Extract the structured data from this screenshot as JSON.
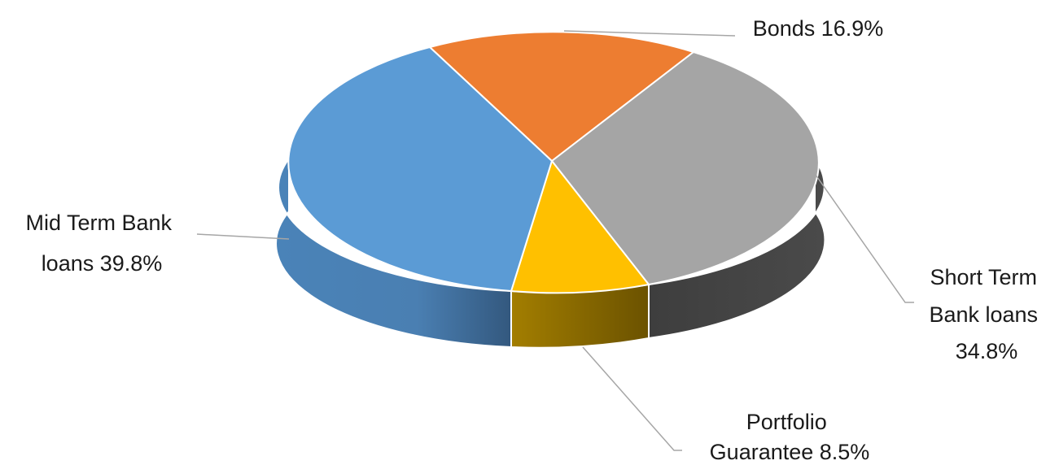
{
  "chart_data": {
    "type": "pie",
    "style": "3d",
    "slices": [
      {
        "name": "Bonds",
        "value": 16.9,
        "label_lines": [
          "Bonds 16.9%"
        ],
        "color": "#ed7d31",
        "side_color": "#b35e22"
      },
      {
        "name": "Short Term Bank loans",
        "value": 34.8,
        "label_lines": [
          "Short Term",
          "Bank loans",
          "34.8%"
        ],
        "color": "#a5a5a5",
        "side_color": "#474747"
      },
      {
        "name": "Portfolio Guarantee",
        "value": 8.5,
        "label_lines": [
          "Portfolio",
          "Guarantee 8.5%"
        ],
        "color": "#ffc000",
        "side_color": "#8c6c00"
      },
      {
        "name": "Mid Term Bank loans",
        "value": 39.8,
        "label_lines": [
          "Mid Term Bank",
          "loans  39.8%"
        ],
        "color": "#5b9bd5",
        "side_color": "#41719c"
      }
    ]
  }
}
